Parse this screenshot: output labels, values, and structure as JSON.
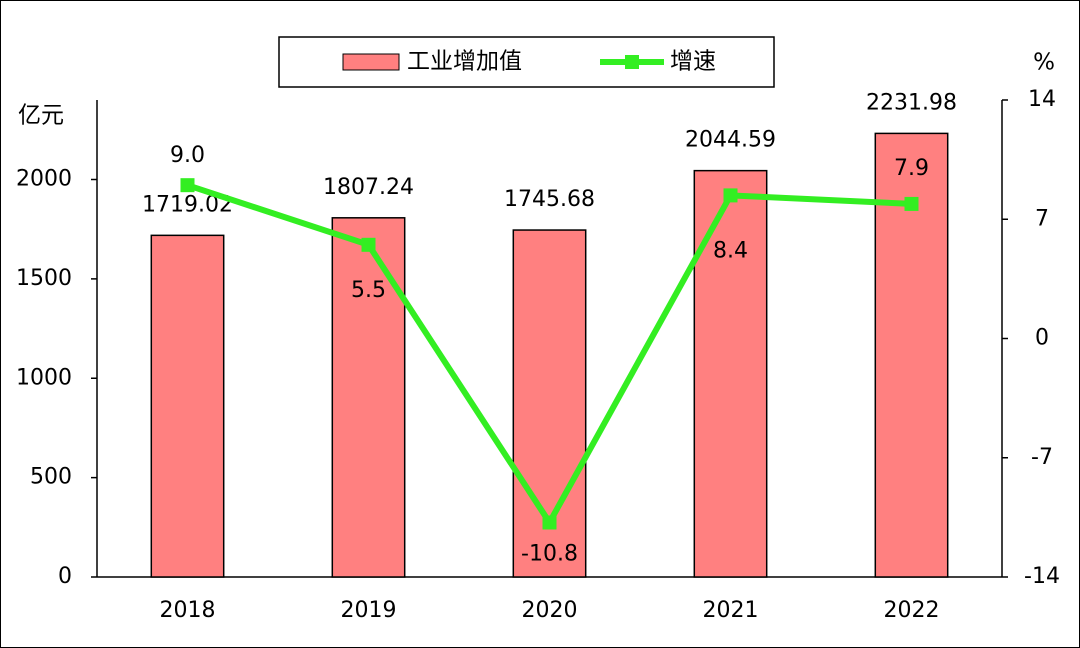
{
  "chart_data": {
    "type": "bar",
    "categories": [
      "2018",
      "2019",
      "2020",
      "2021",
      "2022"
    ],
    "y_label": "亿元",
    "y2_label": "%",
    "ylim": [
      0,
      2400
    ],
    "yticks": [
      0,
      500,
      1000,
      1500,
      2000
    ],
    "y2lim": [
      -14,
      14
    ],
    "y2ticks": [
      -14,
      -7,
      0,
      7,
      14
    ],
    "legend": "top",
    "series": [
      {
        "name": "工业增加值",
        "type": "bar",
        "color": "#ff8080",
        "values": [
          1719.02,
          1807.24,
          1745.68,
          2044.59,
          2231.98
        ]
      },
      {
        "name": "增速",
        "type": "line",
        "axis": "y2",
        "color": "#33ee22",
        "values": [
          9.0,
          5.5,
          -10.8,
          8.4,
          7.9
        ],
        "value_labels": [
          "9.0",
          "5.5",
          "-10.8",
          "8.4",
          "7.9"
        ]
      }
    ]
  }
}
